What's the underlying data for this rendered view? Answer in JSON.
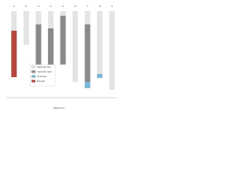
{
  "chart_data": {
    "type": "stacked_bar",
    "categories": [
      "1",
      "2",
      "3",
      "4",
      "5",
      "6",
      "7",
      "8",
      "9"
    ],
    "series": [
      {
        "name": "Capacity free",
        "color": "#e4e4e4",
        "values": [
          25,
          43,
          17,
          22,
          6,
          90,
          17,
          80,
          100
        ]
      },
      {
        "name": "Capacity used",
        "color": "#8a8a8a",
        "values": [
          0,
          0,
          62,
          57,
          62,
          0,
          73,
          0,
          0
        ]
      },
      {
        "name": "Overload",
        "color": "#7db7d4",
        "values": [
          0,
          0,
          5,
          6,
          0,
          0,
          8,
          5,
          0
        ]
      },
      {
        "name": "Blocked",
        "color": "#b5493f",
        "values": [
          59,
          0,
          0,
          0,
          0,
          0,
          0,
          0,
          0
        ]
      }
    ],
    "ylim": [
      0,
      100
    ],
    "x_label": "Resource",
    "legend": "left"
  }
}
